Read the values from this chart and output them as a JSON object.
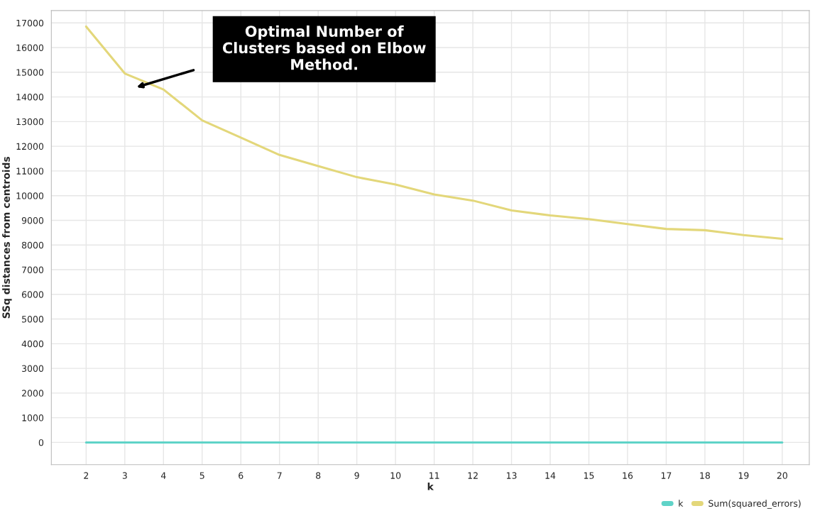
{
  "chart_data": {
    "type": "line",
    "xlabel": "k",
    "ylabel": "SSq distances from centroids",
    "x": [
      2,
      3,
      4,
      5,
      6,
      7,
      8,
      9,
      10,
      11,
      12,
      13,
      14,
      15,
      16,
      17,
      18,
      19,
      20
    ],
    "series": [
      {
        "name": "k",
        "color": "#5fd3c8",
        "values": [
          0,
          0,
          0,
          0,
          0,
          0,
          0,
          0,
          0,
          0,
          0,
          0,
          0,
          0,
          0,
          0,
          0,
          0,
          0
        ]
      },
      {
        "name": "Sum(squared_errors)",
        "color": "#e3d77a",
        "values": [
          16850,
          14950,
          14300,
          13050,
          12350,
          11650,
          11200,
          10750,
          10450,
          10050,
          9800,
          9400,
          9200,
          9050,
          8850,
          8650,
          8600,
          8400,
          8250
        ]
      }
    ],
    "xlim": [
      1.1,
      20.7
    ],
    "xticks": [
      2,
      3,
      4,
      5,
      6,
      7,
      8,
      9,
      10,
      11,
      12,
      13,
      14,
      15,
      16,
      17,
      18,
      19,
      20
    ],
    "ylim": [
      -900,
      17500
    ],
    "yticks": [
      0,
      1000,
      2000,
      3000,
      4000,
      5000,
      6000,
      7000,
      8000,
      9000,
      10000,
      11000,
      12000,
      13000,
      14000,
      15000,
      16000,
      17000
    ],
    "annotations": [
      "Optimal Number of\nClusters based on Elbow\nMethod."
    ],
    "grid": true,
    "legend": "bottom right",
    "marker": "none",
    "line_style": "solid"
  }
}
